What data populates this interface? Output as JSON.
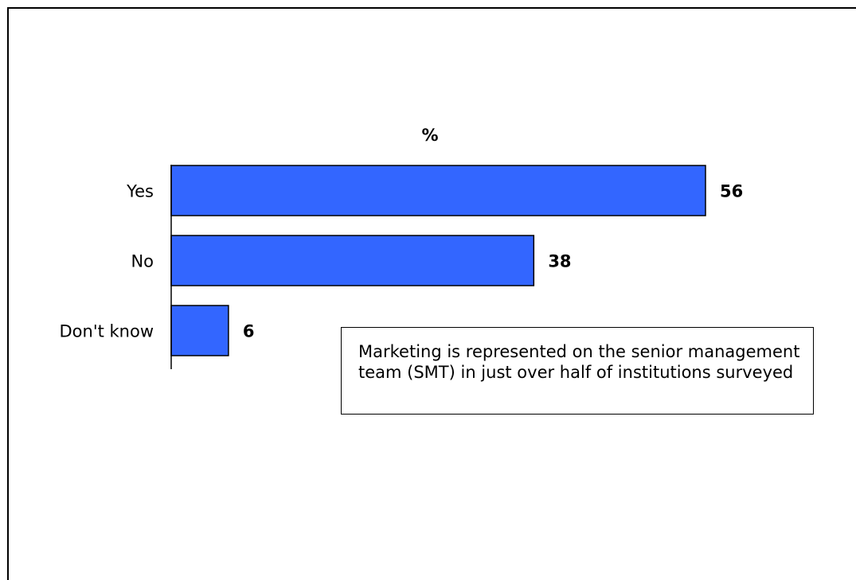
{
  "chart_data": {
    "type": "bar",
    "orientation": "horizontal",
    "title": "%",
    "categories": [
      "Yes",
      "No",
      "Don't know"
    ],
    "values": [
      56,
      38,
      6
    ],
    "data_labels": [
      "56",
      "38",
      "6"
    ],
    "bar_color": "#3366FF",
    "xlim": [
      0,
      56
    ],
    "grid": false,
    "legend": "none"
  },
  "annotation": {
    "text": "Marketing is represented on the senior management team (SMT) in just over half of institutions surveyed"
  }
}
